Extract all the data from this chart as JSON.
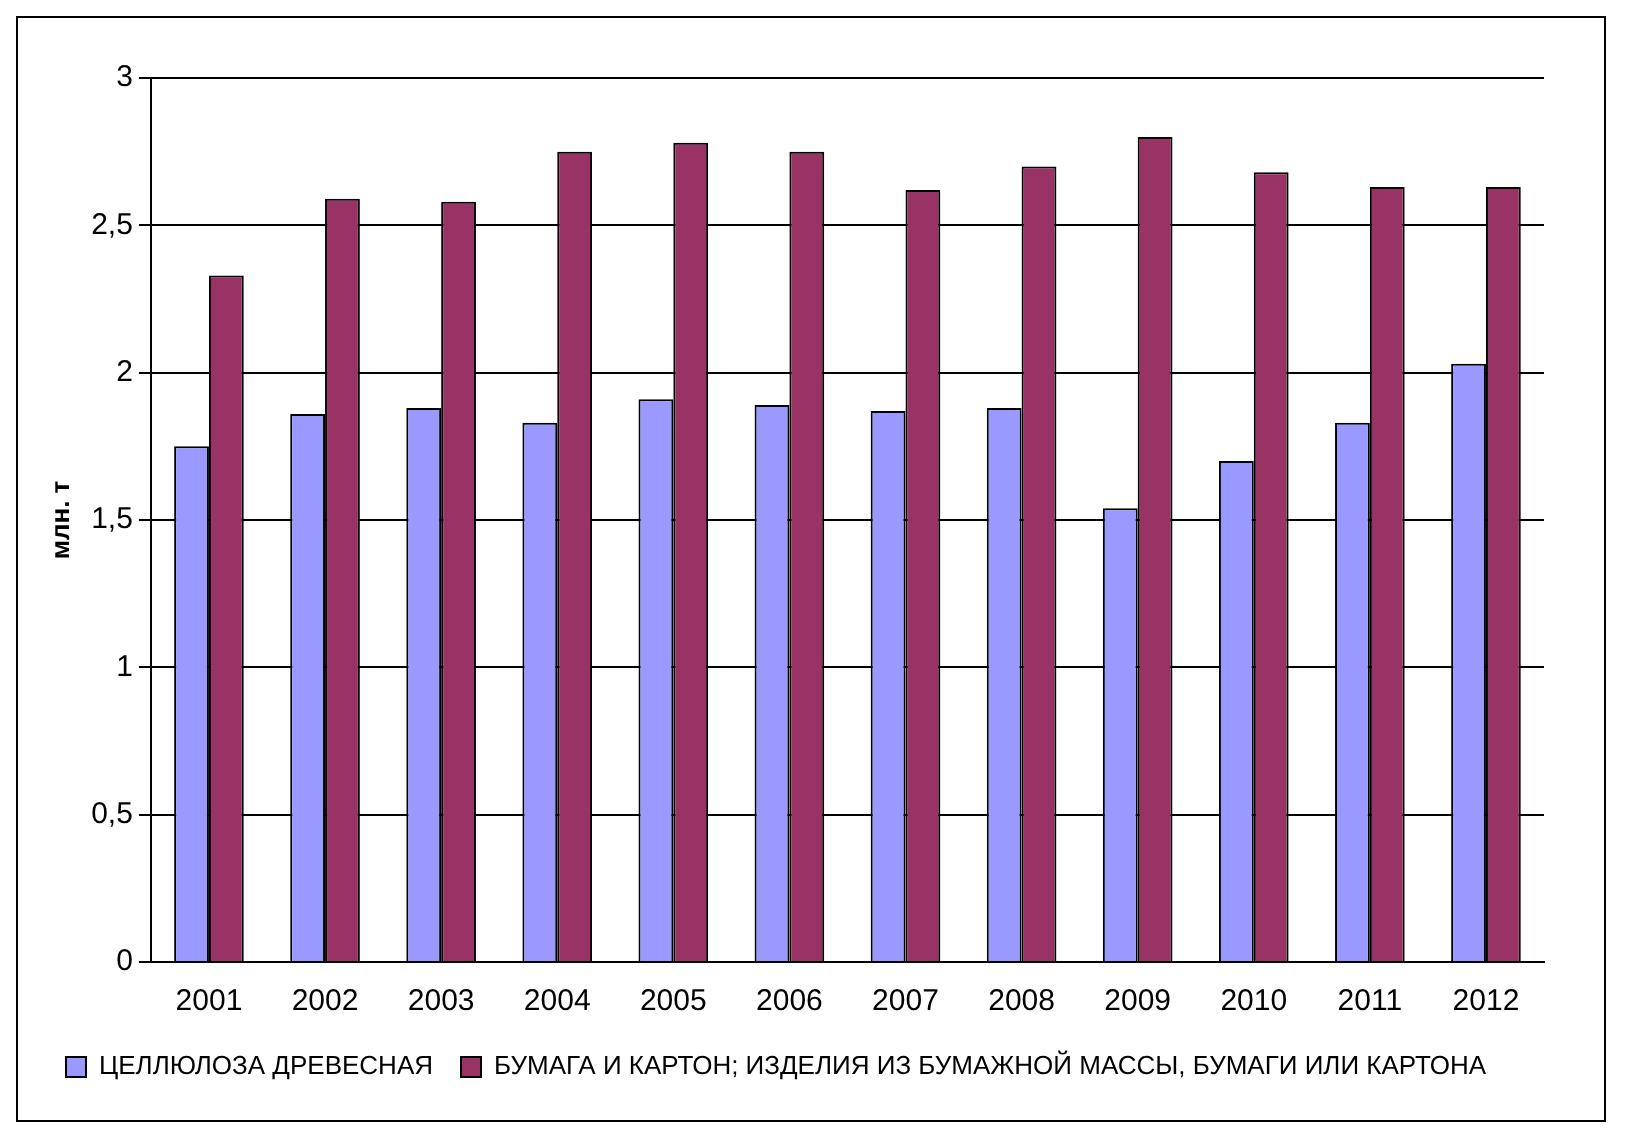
{
  "chart_data": {
    "type": "bar",
    "ylabel": "млн. т",
    "categories": [
      "2001",
      "2002",
      "2003",
      "2004",
      "2005",
      "2006",
      "2007",
      "2008",
      "2009",
      "2010",
      "2011",
      "2012"
    ],
    "series": [
      {
        "name": "ЦЕЛЛЮЛОЗА ДРЕВЕСНАЯ",
        "color": "#9999ff",
        "values": [
          1.75,
          1.86,
          1.88,
          1.83,
          1.91,
          1.89,
          1.87,
          1.88,
          1.54,
          1.7,
          1.83,
          2.03
        ]
      },
      {
        "name": "БУМАГА И КАРТОН; ИЗДЕЛИЯ ИЗ БУМАЖНОЙ МАССЫ, БУМАГИ ИЛИ КАРТОНА",
        "color": "#993366",
        "values": [
          2.33,
          2.59,
          2.58,
          2.75,
          2.78,
          2.75,
          2.62,
          2.7,
          2.8,
          2.68,
          2.63,
          2.63
        ]
      }
    ],
    "ylim": [
      0,
      3
    ],
    "yticks": [
      0,
      {
        "value": 0.5,
        "label": "0,5"
      },
      1,
      {
        "value": 1.5,
        "label": "1,5"
      },
      2,
      {
        "value": 2.5,
        "label": "2,5"
      },
      3
    ],
    "grid": "y",
    "legend": "bottom"
  }
}
